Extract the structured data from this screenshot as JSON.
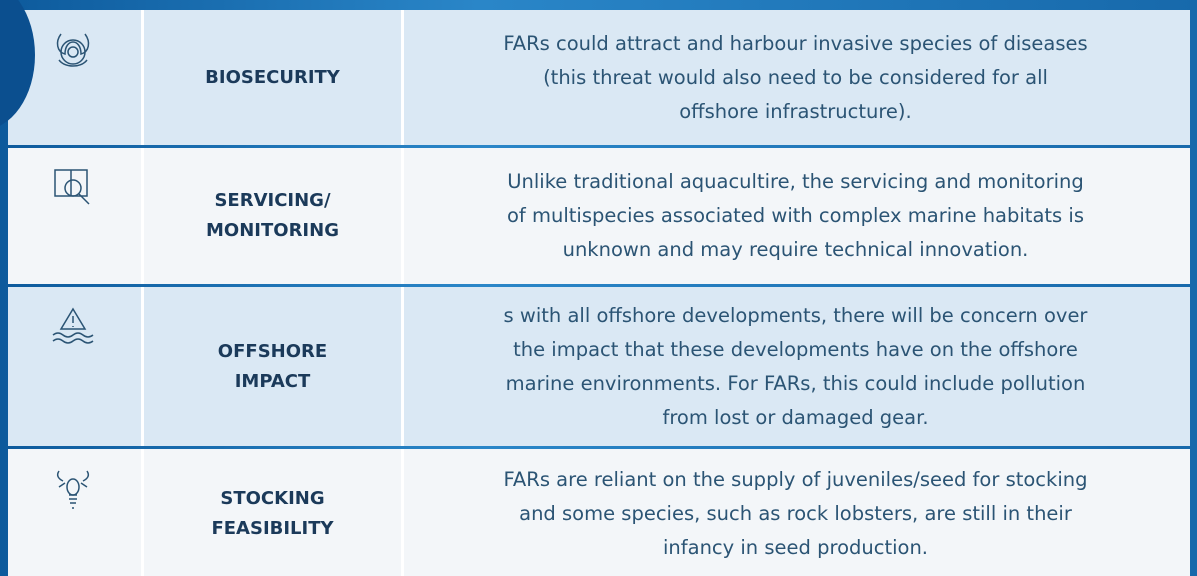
{
  "rows": [
    {
      "label": [
        "BIOSECURITY"
      ],
      "description": [
        "FARs could attract and harbour invasive species of diseases",
        "(this threat would also need to be considered for all",
        "offshore infrastructure)."
      ]
    },
    {
      "label": [
        "SERVICING/",
        "MONITORING"
      ],
      "description": [
        "Unlike traditional aquacultire, the servicing and monitoring",
        "of multispecies associated with complex marine habitats is",
        "unknown and may require technical innovation."
      ]
    },
    {
      "label": [
        "OFFSHORE",
        "IMPACT"
      ],
      "description": [
        "s with all offshore developments, there will be concern over",
        "the impact that these developments have on the offshore",
        "marine environments. For FARs, this could include pollution",
        "from lost or damaged gear."
      ]
    },
    {
      "label": [
        "STOCKING",
        "FEASIBILITY"
      ],
      "description": [
        "FARs are reliant on the supply of juveniles/seed for stocking",
        "and some species, such as rock lobsters, are still in their",
        "infancy in seed production."
      ]
    }
  ]
}
